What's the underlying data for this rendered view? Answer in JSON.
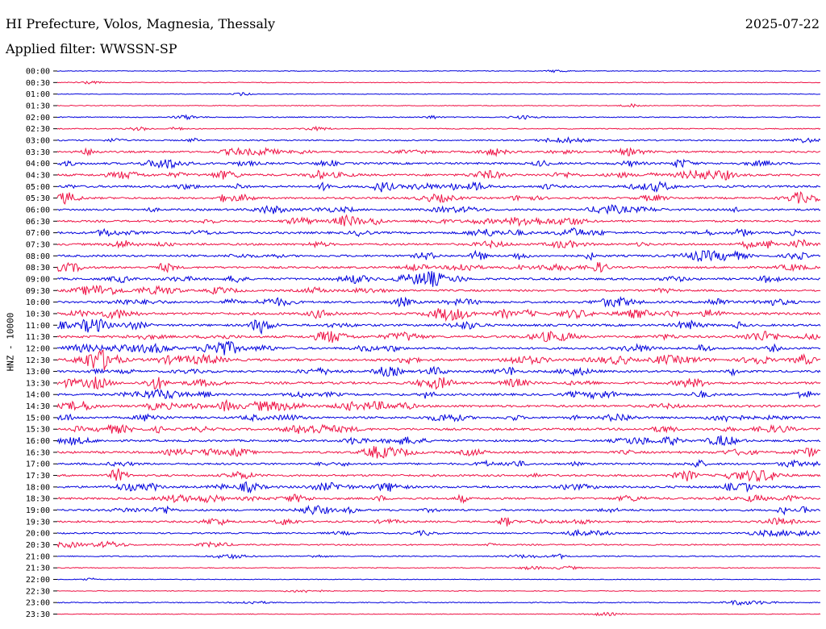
{
  "header": {
    "title": "HI Prefecture, Volos, Magnesia, Thessaly",
    "date": "2025-07-22",
    "filter": "Applied filter: WWSSN-SP"
  },
  "axis": {
    "channel_label": "HNZ - 10000"
  },
  "colors": {
    "even_trace": "#0000dd",
    "odd_trace": "#ee1144"
  },
  "chart_data": {
    "type": "line",
    "title": "HI Prefecture, Volos, Magnesia, Thessaly",
    "subtitle": "Applied filter: WWSSN-SP",
    "ylabel": "HNZ - 10000",
    "xlabel": "",
    "grid": false,
    "legend": "none",
    "series": [
      {
        "label": "00:00",
        "activity": 0.05
      },
      {
        "label": "00:30",
        "activity": 0.05
      },
      {
        "label": "01:00",
        "activity": 0.05
      },
      {
        "label": "01:30",
        "activity": 0.08
      },
      {
        "label": "02:00",
        "activity": 0.15
      },
      {
        "label": "02:30",
        "activity": 0.15
      },
      {
        "label": "03:00",
        "activity": 0.3
      },
      {
        "label": "03:30",
        "activity": 0.5
      },
      {
        "label": "04:00",
        "activity": 0.6
      },
      {
        "label": "04:30",
        "activity": 0.65
      },
      {
        "label": "05:00",
        "activity": 0.65
      },
      {
        "label": "05:30",
        "activity": 0.55
      },
      {
        "label": "06:00",
        "activity": 0.55
      },
      {
        "label": "06:30",
        "activity": 0.55
      },
      {
        "label": "07:00",
        "activity": 0.65
      },
      {
        "label": "07:30",
        "activity": 0.6
      },
      {
        "label": "08:00",
        "activity": 0.6
      },
      {
        "label": "08:30",
        "activity": 0.6
      },
      {
        "label": "09:00",
        "activity": 0.65
      },
      {
        "label": "09:30",
        "activity": 0.55
      },
      {
        "label": "10:00",
        "activity": 0.6
      },
      {
        "label": "10:30",
        "activity": 0.7
      },
      {
        "label": "11:00",
        "activity": 0.65
      },
      {
        "label": "11:30",
        "activity": 0.7
      },
      {
        "label": "12:00",
        "activity": 0.65
      },
      {
        "label": "12:30",
        "activity": 0.75
      },
      {
        "label": "13:00",
        "activity": 0.6
      },
      {
        "label": "13:30",
        "activity": 0.7
      },
      {
        "label": "14:00",
        "activity": 0.65
      },
      {
        "label": "14:30",
        "activity": 0.7
      },
      {
        "label": "15:00",
        "activity": 0.6
      },
      {
        "label": "15:30",
        "activity": 0.65
      },
      {
        "label": "16:00",
        "activity": 0.6
      },
      {
        "label": "16:30",
        "activity": 0.65
      },
      {
        "label": "17:00",
        "activity": 0.55
      },
      {
        "label": "17:30",
        "activity": 0.6
      },
      {
        "label": "18:00",
        "activity": 0.65
      },
      {
        "label": "18:30",
        "activity": 0.6
      },
      {
        "label": "19:00",
        "activity": 0.55
      },
      {
        "label": "19:30",
        "activity": 0.5
      },
      {
        "label": "20:00",
        "activity": 0.35
      },
      {
        "label": "20:30",
        "activity": 0.3
      },
      {
        "label": "21:00",
        "activity": 0.2
      },
      {
        "label": "21:30",
        "activity": 0.1
      },
      {
        "label": "22:00",
        "activity": 0.05
      },
      {
        "label": "22:30",
        "activity": 0.05
      },
      {
        "label": "23:00",
        "activity": 0.15
      },
      {
        "label": "23:30",
        "activity": 0.05
      }
    ]
  }
}
